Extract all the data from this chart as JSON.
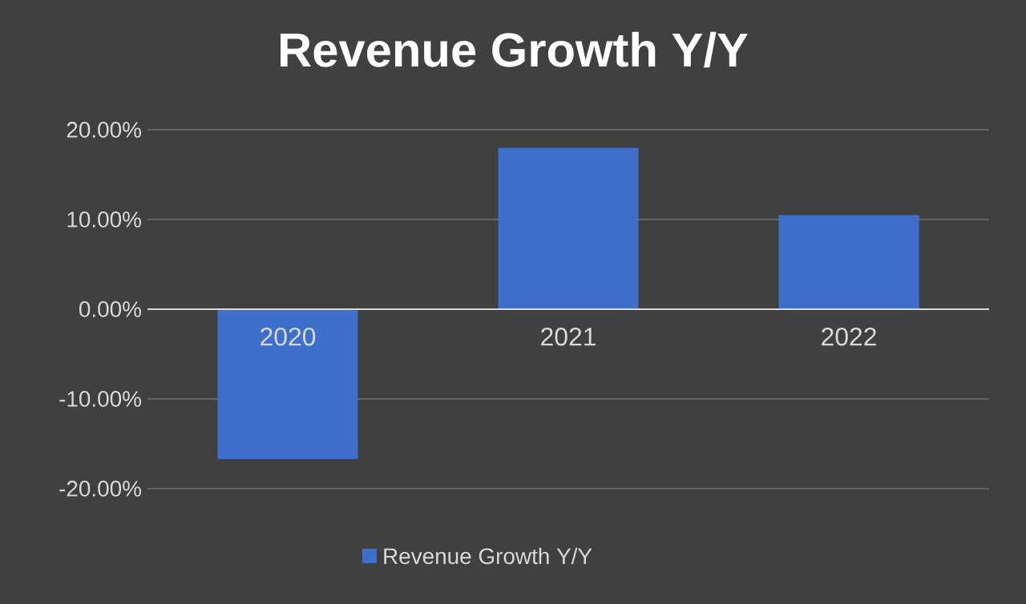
{
  "chart_data": {
    "type": "bar",
    "title": "Revenue Growth Y/Y",
    "categories": [
      "2020",
      "2021",
      "2022"
    ],
    "series": [
      {
        "name": "Revenue Growth Y/Y",
        "color": "#3f6fcc",
        "values": [
          -16.7,
          18.0,
          10.5
        ]
      }
    ],
    "ylim": [
      -20,
      20
    ],
    "yticks": [
      {
        "value": -20,
        "label": "-20.00%"
      },
      {
        "value": -10,
        "label": "-10.00%"
      },
      {
        "value": 0,
        "label": "0.00%"
      },
      {
        "value": 10,
        "label": "10.00%"
      },
      {
        "value": 20,
        "label": "20.00%"
      }
    ],
    "grid": "y",
    "legend": "bottom"
  }
}
